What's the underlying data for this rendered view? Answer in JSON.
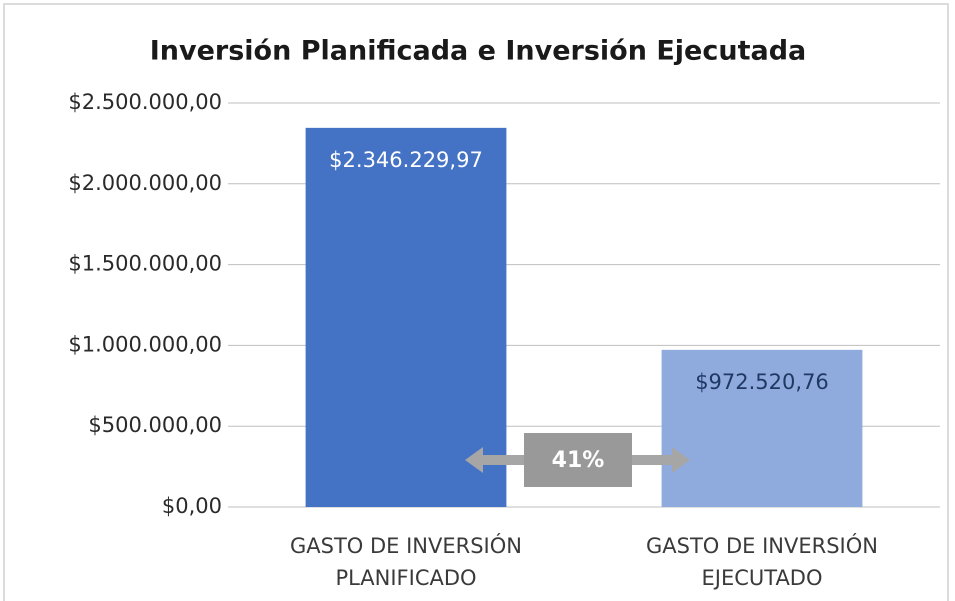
{
  "chart_data": {
    "type": "bar",
    "title": "Inversión Planificada e Inversión Ejecutada",
    "categories": [
      "GASTO DE INVERSIÓN PLANIFICADO",
      "GASTO DE INVERSIÓN EJECUTADO"
    ],
    "values": [
      2346229.97,
      972520.76
    ],
    "value_labels": [
      "$2.346.229,97",
      "$972.520,76"
    ],
    "colors": [
      "#4472c4",
      "#8faadc"
    ],
    "ylim": [
      0,
      2500000
    ],
    "yticks": [
      {
        "value": 0,
        "label": "$0,00"
      },
      {
        "value": 500000,
        "label": "$500.000,00"
      },
      {
        "value": 1000000,
        "label": "$1.000.000,00"
      },
      {
        "value": 1500000,
        "label": "$1.500.000,00"
      },
      {
        "value": 2000000,
        "label": "$2.000.000,00"
      },
      {
        "value": 2500000,
        "label": "$2.500.000,00"
      }
    ],
    "grid": true,
    "annotation": "41%"
  }
}
